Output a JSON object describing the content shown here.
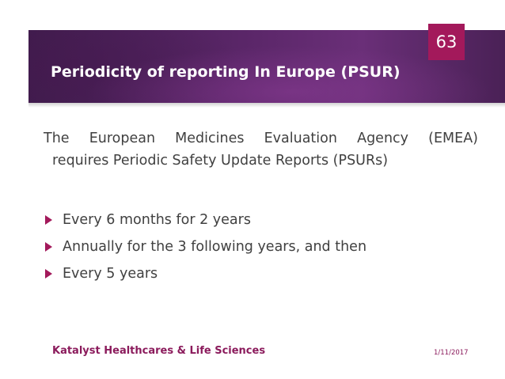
{
  "slide": {
    "title": "Periodicity of reporting In Europe (PSUR)",
    "number": "63",
    "intro_line1": "The European Medicines Evaluation Agency (EMEA)",
    "intro_line2": "requires Periodic Safety Update Reports (PSURs)",
    "bullets": [
      "Every 6 months for 2 years",
      "Annually for the 3 following years, and then",
      "Every 5 years"
    ],
    "footer_left": "Katalyst Healthcares & Life Sciences",
    "footer_date": "1/11/2017"
  },
  "colors": {
    "accent": "#a3195b",
    "title_band": "#5a2668",
    "body_text": "#404040",
    "footer_text": "#8b1b5c"
  },
  "icons": {
    "bullet": "right-triangle-arrow-icon"
  }
}
